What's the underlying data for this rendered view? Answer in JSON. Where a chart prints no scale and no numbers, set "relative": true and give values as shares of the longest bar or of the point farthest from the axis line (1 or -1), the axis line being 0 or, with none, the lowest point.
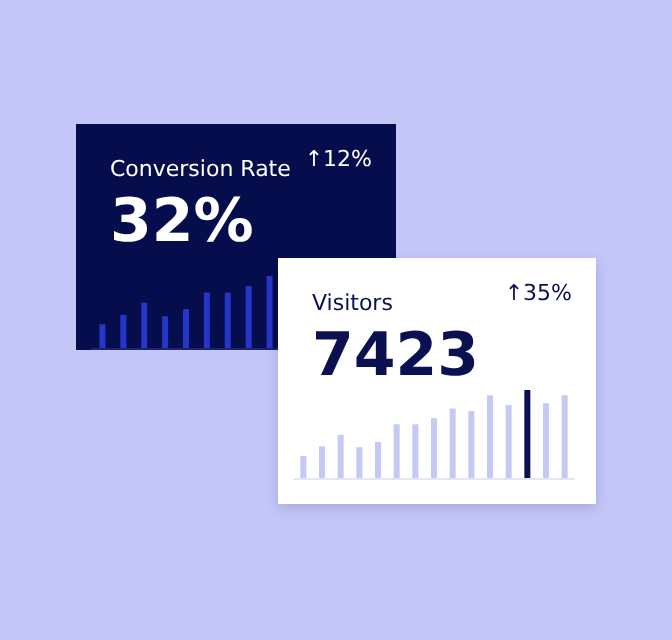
{
  "chart_data": [
    {
      "type": "bar",
      "title": "Conversion Rate",
      "subtitle": "32%",
      "annotations": [
        "↑12%"
      ],
      "relative": true,
      "categories": [
        null,
        null,
        null,
        null,
        null,
        null,
        null,
        null,
        null
      ],
      "values": [
        0.33,
        0.46,
        0.63,
        0.44,
        0.54,
        0.77,
        0.77,
        0.86,
        1.0
      ],
      "color": "#2636c9"
    },
    {
      "type": "bar",
      "title": "Visitors",
      "subtitle": "7423",
      "annotations": [
        "↑35%"
      ],
      "relative": true,
      "categories": [
        null,
        null,
        null,
        null,
        null,
        null,
        null,
        null,
        null,
        null,
        null,
        null,
        null,
        null,
        null
      ],
      "values": [
        0.25,
        0.36,
        0.49,
        0.35,
        0.41,
        0.61,
        0.61,
        0.68,
        0.79,
        0.76,
        0.94,
        0.83,
        1.0,
        0.85,
        0.94
      ],
      "colors": [
        "#c5c9f5",
        "#c5c9f5",
        "#c5c9f5",
        "#c5c9f5",
        "#c5c9f5",
        "#c5c9f5",
        "#c5c9f5",
        "#c5c9f5",
        "#c5c9f5",
        "#c5c9f5",
        "#c5c9f5",
        "#c5c9f5",
        "#0b1150",
        "#c5c9f5",
        "#c5c9f5"
      ]
    }
  ]
}
